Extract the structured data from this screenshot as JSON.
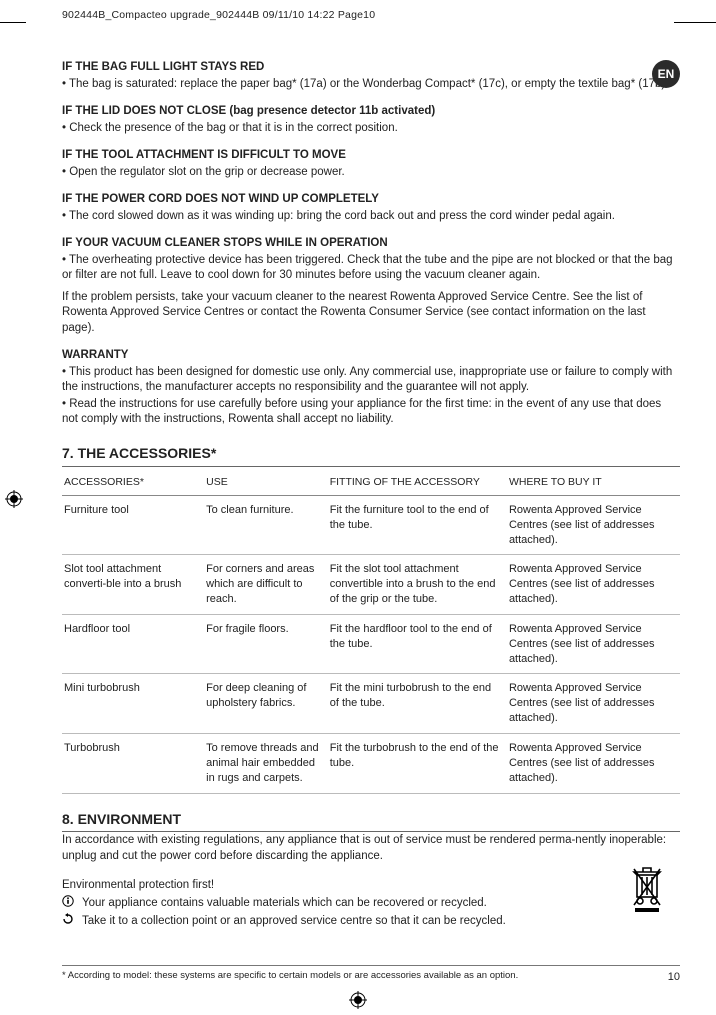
{
  "meta": {
    "header_text": "902444B_Compacteo upgrade_902444B  09/11/10  14:22  Page10",
    "lang_badge": "EN",
    "page_number": "10",
    "footnote": "* According to model: these systems are specific to certain models or are accessories available as an option."
  },
  "troubleshoot": [
    {
      "h": "IF THE BAG FULL LIGHT STAYS RED",
      "p": "• The bag is saturated: replace the paper bag* (17a) or the Wonderbag Compact* (17c), or empty the textile bag* (17b)."
    },
    {
      "h": "IF THE LID DOES NOT CLOSE (bag presence detector 11b activated)",
      "p": "• Check the presence of the bag or that it is in the correct position."
    },
    {
      "h": "IF THE TOOL ATTACHMENT IS DIFFICULT TO MOVE",
      "p": "• Open the regulator slot on the grip or decrease power."
    },
    {
      "h": "IF THE POWER CORD DOES NOT WIND UP COMPLETELY",
      "p": "• The cord slowed down as it was winding up: bring the cord back out and press the cord winder pedal again."
    },
    {
      "h": "IF YOUR VACUUM CLEANER STOPS WHILE IN OPERATION",
      "p": "• The overheating protective device has been triggered. Check that the tube and the pipe are not blocked or that the bag or filter are not full. Leave to cool down for 30 minutes before using the vacuum cleaner again."
    }
  ],
  "persist_note": "If the problem persists, take your vacuum cleaner to the nearest Rowenta Approved Service Centre. See the list of Rowenta Approved Service Centres or contact the Rowenta Consumer Service (see contact information on the last page).",
  "warranty": {
    "h": "WARRANTY",
    "p1": "• This product has been designed for domestic use only.  Any commercial use, inappropriate use or failure to comply with the instructions, the manufacturer accepts no responsibility and the guarantee will not apply.",
    "p2": "• Read the instructions for use carefully before using your appliance for the first time: in the event of any use that does not comply with the instructions, Rowenta shall accept no liability."
  },
  "accessories": {
    "title": "7. THE ACCESSORIES*",
    "columns": [
      "ACCESSORIES*",
      "USE",
      "FITTING OF THE ACCESSORY",
      "WHERE TO BUY IT"
    ],
    "rows": [
      [
        "Furniture tool",
        "To clean furniture.",
        "Fit the furniture tool to the end of the tube.",
        "Rowenta Approved Service Centres (see list of addresses attached)."
      ],
      [
        "Slot tool attachment converti-ble into a brush",
        "For corners and areas which are difficult to reach.",
        "Fit the slot tool attachment convertible into a brush to the end of the grip or the tube.",
        "Rowenta Approved Service Centres (see list of addresses attached)."
      ],
      [
        "Hardfloor tool",
        "For fragile floors.",
        "Fit the hardfloor tool to the end of the tube.",
        "Rowenta Approved Service Centres (see list of addresses attached)."
      ],
      [
        "Mini turbobrush",
        "For deep cleaning of upholstery fabrics.",
        "Fit the mini turbobrush to the end of the tube.",
        "Rowenta Approved Service Centres (see list of addresses attached)."
      ],
      [
        "Turbobrush",
        "To remove threads and animal hair embedded in rugs and carpets.",
        "Fit the turbobrush to the end of the tube.",
        "Rowenta Approved Service Centres (see list of addresses attached)."
      ]
    ]
  },
  "environment": {
    "title": "8. ENVIRONMENT",
    "intro": "In accordance with existing regulations, any appliance that is out of service must be rendered perma-nently inoperable: unplug and cut the power cord before discarding the appliance.",
    "lead": "Environmental protection first!",
    "line1": "Your appliance contains valuable materials which can be recovered or recycled.",
    "line2": "Take it to a collection point or an approved service centre so that it can be recycled."
  }
}
